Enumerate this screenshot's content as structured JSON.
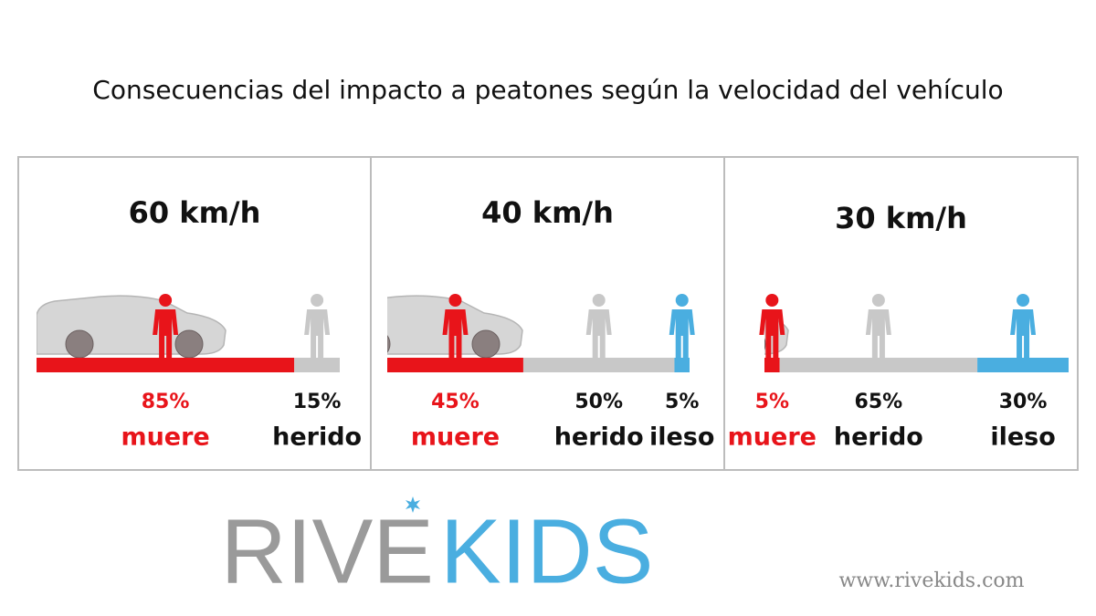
{
  "title": "Consecuencias del impacto a peatones según la velocidad del vehículo",
  "panels": [
    {
      "speed": "60 km/h",
      "segments": [
        {
          "value": 85,
          "value_label": "85%",
          "label": "muere",
          "color": "#e8141a"
        },
        {
          "value": 15,
          "value_label": "15%",
          "label": "herido",
          "color": "#c8c8c8"
        }
      ]
    },
    {
      "speed": "40 km/h",
      "segments": [
        {
          "value": 45,
          "value_label": "45%",
          "label": "muere",
          "color": "#e8141a"
        },
        {
          "value": 50,
          "value_label": "50%",
          "label": "herido",
          "color": "#c8c8c8"
        },
        {
          "value": 5,
          "value_label": "5%",
          "label": "ileso",
          "color": "#4aaee0"
        }
      ]
    },
    {
      "speed": "30 km/h",
      "segments": [
        {
          "value": 5,
          "value_label": "5%",
          "label": "muere",
          "color": "#e8141a"
        },
        {
          "value": 65,
          "value_label": "65%",
          "label": "herido",
          "color": "#c8c8c8"
        },
        {
          "value": 30,
          "value_label": "30%",
          "label": "ileso",
          "color": "#4aaee0"
        }
      ]
    }
  ],
  "logo": {
    "part1": "RIVE",
    "part2": "KIDS"
  },
  "url": "www.rivekids.com"
}
